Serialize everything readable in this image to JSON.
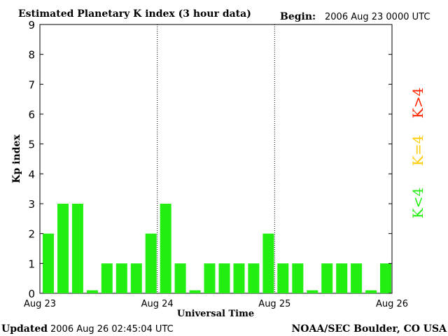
{
  "chart_data": {
    "type": "bar",
    "title": "Estimated Planetary K index (3 hour data)",
    "begin_label": "Begin:",
    "begin_value": "2006 Aug 23 0000 UTC",
    "xlabel": "Universal Time",
    "ylabel": "Kp index",
    "ylim": [
      0,
      9
    ],
    "yticks": [
      "0",
      "1",
      "2",
      "3",
      "4",
      "5",
      "6",
      "7",
      "8",
      "9"
    ],
    "xticks": [
      "Aug 23",
      "Aug 24",
      "Aug 25",
      "Aug 26"
    ],
    "day_separators": "dotted",
    "values": [
      2,
      3,
      3,
      0.1,
      1,
      1,
      1,
      2,
      3,
      1,
      0.1,
      1,
      1,
      1,
      1,
      2,
      1,
      1,
      0.1,
      1,
      1,
      1,
      0.1,
      1
    ],
    "bar_color": "#22ee11",
    "legend": [
      {
        "label": "K<4",
        "color": "#22ee11"
      },
      {
        "label": "K=4",
        "color": "#ffcc00"
      },
      {
        "label": "K>4",
        "color": "#ff2200"
      }
    ],
    "legend_placement": "right"
  },
  "footer": {
    "updated_label": "Updated",
    "updated_value": "2006 Aug 26 02:45:04 UTC",
    "credit": "NOAA/SEC Boulder, CO USA"
  }
}
